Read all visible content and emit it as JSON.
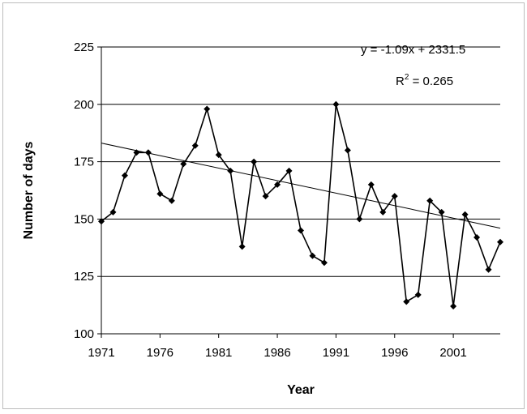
{
  "chart_data": {
    "type": "line",
    "title": "",
    "xlabel": "Year",
    "ylabel": "Number of days",
    "xlim": [
      1971,
      2005
    ],
    "ylim": [
      100,
      225
    ],
    "x_ticks": [
      1971,
      1976,
      1981,
      1986,
      1991,
      1996,
      2001
    ],
    "y_ticks": [
      100,
      125,
      150,
      175,
      200,
      225
    ],
    "grid": "horizontal",
    "legend": "none",
    "series": [
      {
        "x": [
          1971,
          1972,
          1973,
          1974,
          1975,
          1976,
          1977,
          1978,
          1979,
          1980,
          1981,
          1982,
          1983,
          1984,
          1985,
          1986,
          1987,
          1988,
          1989,
          1990,
          1991,
          1992,
          1993,
          1994,
          1995,
          1996,
          1997,
          1998,
          1999,
          2000,
          2001,
          2002,
          2003,
          2004,
          2005
        ],
        "values": [
          149,
          153,
          169,
          179,
          179,
          161,
          158,
          174,
          182,
          198,
          178,
          171,
          138,
          175,
          160,
          165,
          171,
          145,
          134,
          131,
          200,
          180,
          150,
          165,
          153,
          160,
          114,
          117,
          158,
          153,
          112,
          152,
          142,
          128,
          140
        ],
        "marker": "diamond",
        "color": "#000000"
      }
    ],
    "trendline": {
      "slope": -1.09,
      "intercept": 2331.5,
      "equation_label": "y = -1.09x + 2331.5",
      "r2_label_prefix": "R",
      "r2_label_sup": "2",
      "r2_label_suffix": " = 0.265"
    }
  }
}
